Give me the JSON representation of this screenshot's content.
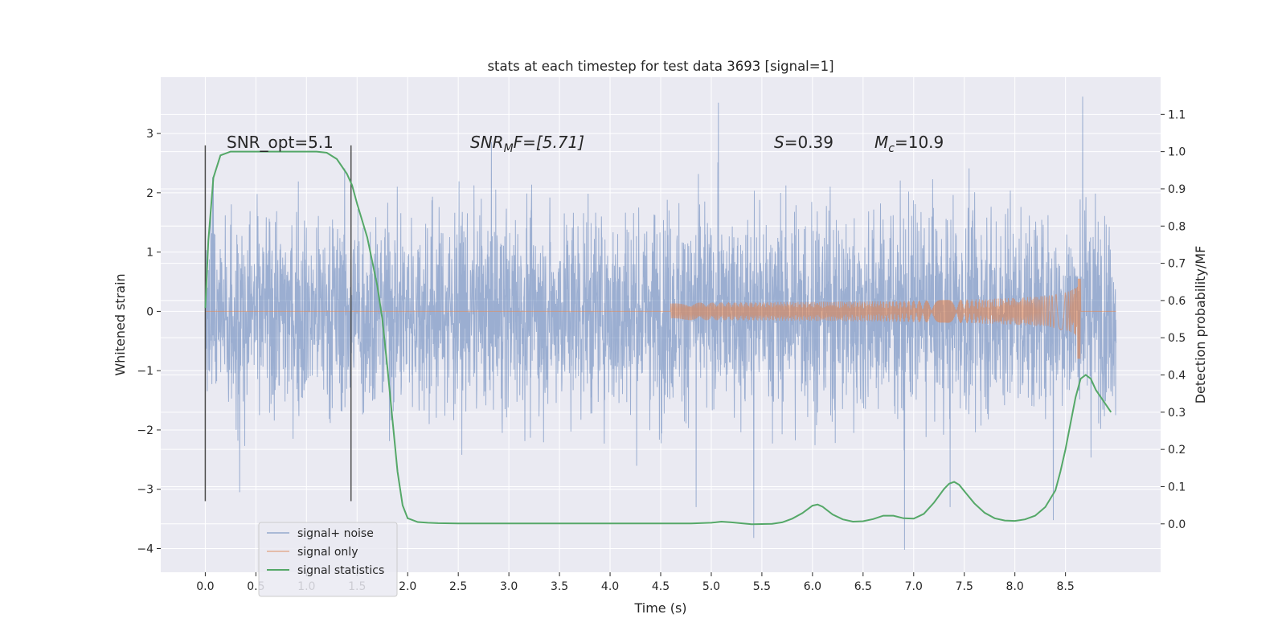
{
  "chart_data": {
    "type": "line",
    "title": "stats at each timestep for test data 3693 [signal=1]",
    "xlabel": "Time (s)",
    "ylabel": "Whitened strain",
    "y2label": "Detection probability/MF",
    "xlim": [
      -0.44,
      9.44
    ],
    "ylim": [
      -4.4,
      3.95
    ],
    "y2lim": [
      -0.13,
      1.2
    ],
    "xticks": [
      0.0,
      0.5,
      1.0,
      1.5,
      2.0,
      2.5,
      3.0,
      3.5,
      4.0,
      4.5,
      5.0,
      5.5,
      6.0,
      6.5,
      7.0,
      7.5,
      8.0,
      8.5
    ],
    "xtick_labels": [
      "0.0",
      "0.5",
      "1.0",
      "1.5",
      "2.0",
      "2.5",
      "3.0",
      "3.5",
      "4.0",
      "4.5",
      "5.0",
      "5.5",
      "6.0",
      "6.5",
      "7.0",
      "7.5",
      "8.0",
      "8.5"
    ],
    "yticks": [
      -4,
      -3,
      -2,
      -1,
      0,
      1,
      2,
      3
    ],
    "ytick_labels": [
      "−4",
      "−3",
      "−2",
      "−1",
      "0",
      "1",
      "2",
      "3"
    ],
    "y2ticks": [
      0.0,
      0.1,
      0.2,
      0.3,
      0.4,
      0.5,
      0.6,
      0.7,
      0.8,
      0.9,
      1.0,
      1.1
    ],
    "y2tick_labels": [
      "0.0",
      "0.1",
      "0.2",
      "0.3",
      "0.4",
      "0.5",
      "0.6",
      "0.7",
      "0.8",
      "0.9",
      "1.0",
      "1.1"
    ],
    "grid": true,
    "legend_placement": "lower-left",
    "colors": {
      "background": "#eaeaf2",
      "grid": "#ffffff",
      "noise": "#4c72b0",
      "signal": "#dd8452",
      "stats": "#55a868",
      "vline": "#4d4d4d"
    },
    "annotations": {
      "snr_opt": "SNR_opt=5.1",
      "snr_mf_sym": "SNR",
      "snr_mf_sub": "M",
      "snr_mf_rest": "F=[5.71]",
      "s_sym": "S",
      "s_rest": "=0.39",
      "mc_sym": "M",
      "mc_sub": "c",
      "mc_rest": "=10.9"
    },
    "vlines": [
      {
        "x": 0.0,
        "ymin": -3.2,
        "ymax": 2.8
      },
      {
        "x": 1.44,
        "ymin": -3.2,
        "ymax": 2.8
      }
    ],
    "noise_envelope": {
      "t_range": [
        0.0,
        9.0
      ],
      "typical_abs": 1.35,
      "max": 3.62,
      "min": -4.02
    },
    "series": [
      {
        "name": "signal+ noise",
        "axis": "left",
        "type": "noise",
        "peaks": [
          {
            "x": 5.07,
            "y": 3.52
          },
          {
            "x": 8.67,
            "y": 3.62
          },
          {
            "x": 6.91,
            "y": -4.02
          },
          {
            "x": 5.42,
            "y": -3.82
          },
          {
            "x": 8.38,
            "y": -3.52
          },
          {
            "x": 0.34,
            "y": -3.05
          },
          {
            "x": 4.85,
            "y": -3.3
          },
          {
            "x": 7.36,
            "y": -3.3
          }
        ]
      },
      {
        "name": "signal only",
        "axis": "left",
        "type": "chirp",
        "t_start": 4.6,
        "t_merger": 8.65,
        "amplitude_max": 0.55,
        "amplitude_min": -0.8
      },
      {
        "name": "signal statistics",
        "axis": "right",
        "type": "line",
        "x": [
          0.0,
          0.03,
          0.08,
          0.15,
          0.25,
          0.4,
          0.6,
          0.8,
          1.0,
          1.1,
          1.2,
          1.3,
          1.4,
          1.45,
          1.5,
          1.6,
          1.7,
          1.75,
          1.8,
          1.85,
          1.9,
          1.95,
          2.0,
          2.1,
          2.2,
          2.3,
          2.5,
          2.8,
          3.0,
          3.5,
          4.0,
          4.5,
          4.8,
          5.0,
          5.1,
          5.2,
          5.4,
          5.6,
          5.7,
          5.8,
          5.9,
          6.0,
          6.05,
          6.1,
          6.2,
          6.3,
          6.4,
          6.5,
          6.6,
          6.7,
          6.8,
          6.9,
          7.0,
          7.1,
          7.2,
          7.3,
          7.35,
          7.4,
          7.45,
          7.5,
          7.6,
          7.7,
          7.8,
          7.9,
          8.0,
          8.1,
          8.2,
          8.3,
          8.4,
          8.45,
          8.5,
          8.55,
          8.6,
          8.65,
          8.7,
          8.75,
          8.8,
          8.85,
          8.9,
          8.95
        ],
        "values": [
          0.58,
          0.76,
          0.93,
          0.99,
          1.0,
          1.0,
          1.0,
          1.0,
          1.0,
          1.0,
          0.997,
          0.98,
          0.94,
          0.91,
          0.86,
          0.77,
          0.64,
          0.55,
          0.42,
          0.28,
          0.14,
          0.05,
          0.015,
          0.005,
          0.003,
          0.002,
          0.001,
          0.001,
          0.001,
          0.001,
          0.001,
          0.001,
          0.001,
          0.003,
          0.006,
          0.004,
          -0.001,
          0.0,
          0.004,
          0.014,
          0.029,
          0.049,
          0.052,
          0.046,
          0.025,
          0.012,
          0.006,
          0.007,
          0.013,
          0.022,
          0.022,
          0.015,
          0.014,
          0.027,
          0.057,
          0.094,
          0.108,
          0.113,
          0.105,
          0.088,
          0.055,
          0.03,
          0.015,
          0.009,
          0.008,
          0.012,
          0.022,
          0.045,
          0.09,
          0.14,
          0.2,
          0.27,
          0.34,
          0.39,
          0.4,
          0.39,
          0.36,
          0.34,
          0.32,
          0.3
        ]
      }
    ]
  }
}
